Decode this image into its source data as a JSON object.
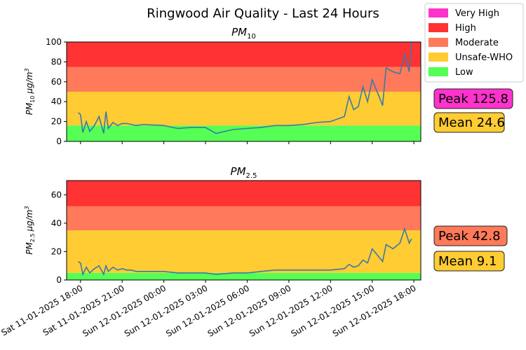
{
  "title": "Ringwood Air Quality - Last 24 Hours",
  "colors": {
    "very_high": "#ff33cc",
    "high": "#ff3333",
    "moderate": "#ff7a5a",
    "unsafe_who": "#ffcc33",
    "low": "#55ff55",
    "line": "#3a7aa8"
  },
  "legend": [
    {
      "label": "Very High",
      "color": "#ff33cc"
    },
    {
      "label": "High",
      "color": "#ff3333"
    },
    {
      "label": "Moderate",
      "color": "#ff7a5a"
    },
    {
      "label": "Unsafe-WHO",
      "color": "#ffcc33"
    },
    {
      "label": "Low",
      "color": "#55ff55"
    }
  ],
  "x_ticks": [
    "Sat 11-01-2025 18:00",
    "Sat 11-01-2025 21:00",
    "Sun 12-01-2025 00:00",
    "Sun 12-01-2025 03:00",
    "Sun 12-01-2025 06:00",
    "Sun 12-01-2025 09:00",
    "Sun 12-01-2025 12:00",
    "Sun 12-01-2025 15:00",
    "Sun 12-01-2025 18:00"
  ],
  "chart_data": [
    {
      "type": "line",
      "title_main": "PM",
      "title_sub": "10",
      "ylabel": "PM10 µg/m3",
      "ylabel_main": "PM",
      "ylabel_sub": "10",
      "ylabel_unit": "µg/m",
      "ylabel_sup": "3",
      "xlim": [
        "Sat 11-01-2025 17:00",
        "Sun 12-01-2025 18:30"
      ],
      "ylim": [
        0,
        100
      ],
      "yticks": [
        0,
        20,
        40,
        60,
        80,
        100
      ],
      "bands": [
        {
          "name": "Low",
          "from": 0,
          "to": 16,
          "color": "#55ff55"
        },
        {
          "name": "Unsafe-WHO",
          "from": 16,
          "to": 50,
          "color": "#ffcc33"
        },
        {
          "name": "Moderate",
          "from": 50,
          "to": 75,
          "color": "#ff7a5a"
        },
        {
          "name": "High",
          "from": 75,
          "to": 100,
          "color": "#ff3333"
        }
      ],
      "stats": [
        {
          "label": "Peak 125.8",
          "color": "#ff33cc"
        },
        {
          "label": "Mean 24.6",
          "color": "#ffcc33"
        }
      ],
      "series": [
        {
          "x": [
            "Sat 11-01-2025 17:50",
            "Sat 11-01-2025 18:00",
            "Sat 11-01-2025 18:10",
            "Sat 11-01-2025 18:25",
            "Sat 11-01-2025 18:40",
            "Sat 11-01-2025 19:00",
            "Sat 11-01-2025 19:20",
            "Sat 11-01-2025 19:40",
            "Sat 11-01-2025 19:50",
            "Sat 11-01-2025 20:00",
            "Sat 11-01-2025 20:20",
            "Sat 11-01-2025 20:40",
            "Sat 11-01-2025 21:00",
            "Sat 11-01-2025 21:20",
            "Sat 11-01-2025 21:40",
            "Sat 11-01-2025 22:00",
            "Sat 11-01-2025 22:30",
            "Sun 12-01-2025 00:00",
            "Sun 12-01-2025 01:00",
            "Sun 12-01-2025 02:00",
            "Sun 12-01-2025 03:00",
            "Sun 12-01-2025 03:45",
            "Sun 12-01-2025 05:00",
            "Sun 12-01-2025 06:00",
            "Sun 12-01-2025 07:00",
            "Sun 12-01-2025 08:00",
            "Sun 12-01-2025 09:00",
            "Sun 12-01-2025 10:00",
            "Sun 12-01-2025 11:00",
            "Sun 12-01-2025 12:00",
            "Sun 12-01-2025 13:00",
            "Sun 12-01-2025 13:20",
            "Sun 12-01-2025 13:40",
            "Sun 12-01-2025 14:00",
            "Sun 12-01-2025 14:20",
            "Sun 12-01-2025 14:40",
            "Sun 12-01-2025 15:00",
            "Sun 12-01-2025 15:30",
            "Sun 12-01-2025 15:45",
            "Sun 12-01-2025 16:00",
            "Sun 12-01-2025 16:30",
            "Sun 12-01-2025 17:00",
            "Sun 12-01-2025 17:20",
            "Sun 12-01-2025 17:40",
            "Sun 12-01-2025 17:50"
          ],
          "y": [
            29,
            27,
            9,
            20,
            10,
            16,
            25,
            8,
            30,
            13,
            19,
            16,
            18,
            18,
            17,
            16,
            17,
            16,
            13,
            14,
            14,
            8,
            12,
            13,
            14,
            16,
            16,
            17,
            19,
            20,
            25,
            45,
            32,
            35,
            55,
            40,
            62,
            45,
            36,
            74,
            70,
            68,
            88,
            70,
            100
          ]
        }
      ]
    },
    {
      "type": "line",
      "title_main": "PM",
      "title_sub": "2.5",
      "ylabel": "PM2.5 µg/m3",
      "ylabel_main": "PM",
      "ylabel_sub": "2.5",
      "ylabel_unit": "µg/m",
      "ylabel_sup": "3",
      "xlim": [
        "Sat 11-01-2025 17:00",
        "Sun 12-01-2025 18:30"
      ],
      "ylim": [
        0,
        70
      ],
      "yticks": [
        0,
        20,
        40,
        60
      ],
      "bands": [
        {
          "name": "Low",
          "from": 0,
          "to": 5,
          "color": "#55ff55"
        },
        {
          "name": "Unsafe-WHO",
          "from": 5,
          "to": 35,
          "color": "#ffcc33"
        },
        {
          "name": "Moderate",
          "from": 35,
          "to": 52,
          "color": "#ff7a5a"
        },
        {
          "name": "High",
          "from": 52,
          "to": 70,
          "color": "#ff3333"
        }
      ],
      "stats": [
        {
          "label": "Peak 42.8",
          "color": "#ff7a5a"
        },
        {
          "label": "Mean 9.1",
          "color": "#ffcc33"
        }
      ],
      "series": [
        {
          "x": [
            "Sat 11-01-2025 17:50",
            "Sat 11-01-2025 18:00",
            "Sat 11-01-2025 18:10",
            "Sat 11-01-2025 18:25",
            "Sat 11-01-2025 18:40",
            "Sat 11-01-2025 19:00",
            "Sat 11-01-2025 19:20",
            "Sat 11-01-2025 19:40",
            "Sat 11-01-2025 19:50",
            "Sat 11-01-2025 20:00",
            "Sat 11-01-2025 20:20",
            "Sat 11-01-2025 20:40",
            "Sat 11-01-2025 21:00",
            "Sat 11-01-2025 21:20",
            "Sat 11-01-2025 21:40",
            "Sat 11-01-2025 22:00",
            "Sat 11-01-2025 22:30",
            "Sun 12-01-2025 00:00",
            "Sun 12-01-2025 01:00",
            "Sun 12-01-2025 02:00",
            "Sun 12-01-2025 03:00",
            "Sun 12-01-2025 03:45",
            "Sun 12-01-2025 05:00",
            "Sun 12-01-2025 06:00",
            "Sun 12-01-2025 07:00",
            "Sun 12-01-2025 08:00",
            "Sun 12-01-2025 09:00",
            "Sun 12-01-2025 10:00",
            "Sun 12-01-2025 11:00",
            "Sun 12-01-2025 12:00",
            "Sun 12-01-2025 13:00",
            "Sun 12-01-2025 13:20",
            "Sun 12-01-2025 13:40",
            "Sun 12-01-2025 14:00",
            "Sun 12-01-2025 14:20",
            "Sun 12-01-2025 14:40",
            "Sun 12-01-2025 15:00",
            "Sun 12-01-2025 15:30",
            "Sun 12-01-2025 15:45",
            "Sun 12-01-2025 16:00",
            "Sun 12-01-2025 16:30",
            "Sun 12-01-2025 17:00",
            "Sun 12-01-2025 17:20",
            "Sun 12-01-2025 17:40",
            "Sun 12-01-2025 17:50"
          ],
          "y": [
            13,
            12,
            4,
            9,
            5,
            8,
            10,
            4,
            10,
            6,
            9,
            7,
            8,
            7,
            7,
            6,
            6,
            6,
            5,
            5,
            5,
            4,
            5,
            5,
            6,
            7,
            7,
            7,
            7,
            7,
            8,
            11,
            9,
            10,
            14,
            12,
            22,
            16,
            13,
            25,
            22,
            26,
            36,
            26,
            29
          ]
        }
      ]
    }
  ]
}
